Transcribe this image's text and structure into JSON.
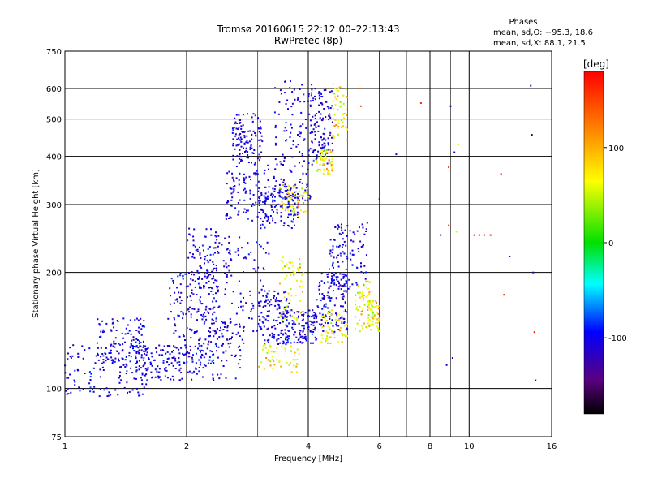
{
  "chart_data": {
    "type": "scatter",
    "title_line1": "Tromsø 20160615 22:12:00–22:13:43",
    "title_line2": "RwPretec (8p)",
    "xlabel": "Frequency [MHz]",
    "ylabel": "Stationary phase Virtual Height [km]",
    "x_scale": "log",
    "y_scale": "log",
    "xlim": [
      1,
      16
    ],
    "ylim": [
      75,
      750
    ],
    "x_ticks": [
      1,
      2,
      4,
      6,
      8,
      10,
      16
    ],
    "x_minor": [
      3,
      5,
      7,
      9
    ],
    "y_ticks": [
      75,
      100,
      200,
      300,
      400,
      500,
      600,
      750
    ],
    "grid": true,
    "stats": {
      "heading": "Phases",
      "line1": "mean, sd,O: −95.3, 18.6",
      "line2": "mean, sd,X:  88.1, 21.5"
    },
    "colorbar": {
      "label": "[deg]",
      "range": [
        -180,
        180
      ],
      "ticks": [
        100,
        0,
        -100
      ],
      "colors": {
        "top": "#ff0000",
        "orange": "#ff8c00",
        "yellow": "#ffff00",
        "green": "#00e000",
        "cyan": "#00ffff",
        "blue": "#0000ff",
        "purple": "#5a0080",
        "bottom": "#000000"
      }
    },
    "clusters_O": [
      {
        "f": [
          1.0,
          1.6
        ],
        "h": [
          95,
          130
        ]
      },
      {
        "f": [
          1.2,
          1.6
        ],
        "h": [
          118,
          152
        ]
      },
      {
        "f": [
          1.5,
          2.0
        ],
        "h": [
          105,
          130
        ]
      },
      {
        "f": [
          1.8,
          2.4
        ],
        "h": [
          120,
          200
        ]
      },
      {
        "f": [
          2.0,
          2.8
        ],
        "h": [
          105,
          150
        ]
      },
      {
        "f": [
          2.0,
          2.4
        ],
        "h": [
          150,
          260
        ]
      },
      {
        "f": [
          2.3,
          3.2
        ],
        "h": [
          140,
          250
        ]
      },
      {
        "f": [
          2.5,
          3.3
        ],
        "h": [
          270,
          380
        ]
      },
      {
        "f": [
          2.6,
          3.1
        ],
        "h": [
          380,
          520
        ]
      },
      {
        "f": [
          3.0,
          3.6
        ],
        "h": [
          130,
          180
        ]
      },
      {
        "f": [
          3.0,
          3.8
        ],
        "h": [
          260,
          340
        ]
      },
      {
        "f": [
          3.3,
          4.1
        ],
        "h": [
          300,
          630
        ]
      },
      {
        "f": [
          3.5,
          4.2
        ],
        "h": [
          130,
          160
        ]
      },
      {
        "f": [
          4.0,
          4.6
        ],
        "h": [
          380,
          600
        ]
      },
      {
        "f": [
          4.2,
          5.0
        ],
        "h": [
          140,
          200
        ]
      },
      {
        "f": [
          4.5,
          5.6
        ],
        "h": [
          180,
          270
        ]
      }
    ],
    "clusters_X": [
      {
        "f": [
          3.0,
          3.8
        ],
        "h": [
          110,
          130
        ]
      },
      {
        "f": [
          3.4,
          4.0
        ],
        "h": [
          280,
          340
        ]
      },
      {
        "f": [
          3.4,
          3.9
        ],
        "h": [
          150,
          220
        ]
      },
      {
        "f": [
          4.2,
          4.6
        ],
        "h": [
          360,
          420
        ]
      },
      {
        "f": [
          4.3,
          5.0
        ],
        "h": [
          130,
          160
        ]
      },
      {
        "f": [
          4.6,
          5.0
        ],
        "h": [
          440,
          620
        ]
      },
      {
        "f": [
          5.2,
          5.8
        ],
        "h": [
          140,
          190
        ]
      },
      {
        "f": [
          5.6,
          6.0
        ],
        "h": [
          140,
          170
        ]
      }
    ],
    "sparse_points": [
      {
        "f": 5.4,
        "h": 540,
        "p": 150
      },
      {
        "f": 5.3,
        "h": 600,
        "p": 140
      },
      {
        "f": 6.6,
        "h": 405,
        "p": -110
      },
      {
        "f": 7.6,
        "h": 550,
        "p": 160
      },
      {
        "f": 9.0,
        "h": 540,
        "p": -120
      },
      {
        "f": 8.5,
        "h": 250,
        "p": -100
      },
      {
        "f": 8.9,
        "h": 265,
        "p": 160
      },
      {
        "f": 9.3,
        "h": 255,
        "p": 80
      },
      {
        "f": 8.9,
        "h": 375,
        "p": 160
      },
      {
        "f": 9.2,
        "h": 410,
        "p": -100
      },
      {
        "f": 9.4,
        "h": 430,
        "p": 60
      },
      {
        "f": 10.3,
        "h": 250,
        "p": 175
      },
      {
        "f": 10.6,
        "h": 250,
        "p": 175
      },
      {
        "f": 10.9,
        "h": 250,
        "p": 175
      },
      {
        "f": 11.3,
        "h": 250,
        "p": 175
      },
      {
        "f": 12.0,
        "h": 360,
        "p": 175
      },
      {
        "f": 12.2,
        "h": 175,
        "p": 175
      },
      {
        "f": 12.6,
        "h": 220,
        "p": -110
      },
      {
        "f": 14.2,
        "h": 610,
        "p": -120
      },
      {
        "f": 14.3,
        "h": 455,
        "p": -170
      },
      {
        "f": 14.4,
        "h": 200,
        "p": -110
      },
      {
        "f": 14.5,
        "h": 140,
        "p": 170
      },
      {
        "f": 14.6,
        "h": 105,
        "p": -110
      },
      {
        "f": 8.8,
        "h": 115,
        "p": -100
      },
      {
        "f": 9.1,
        "h": 120,
        "p": -100
      },
      {
        "f": 6.0,
        "h": 310,
        "p": -100
      }
    ],
    "seed": 73
  }
}
